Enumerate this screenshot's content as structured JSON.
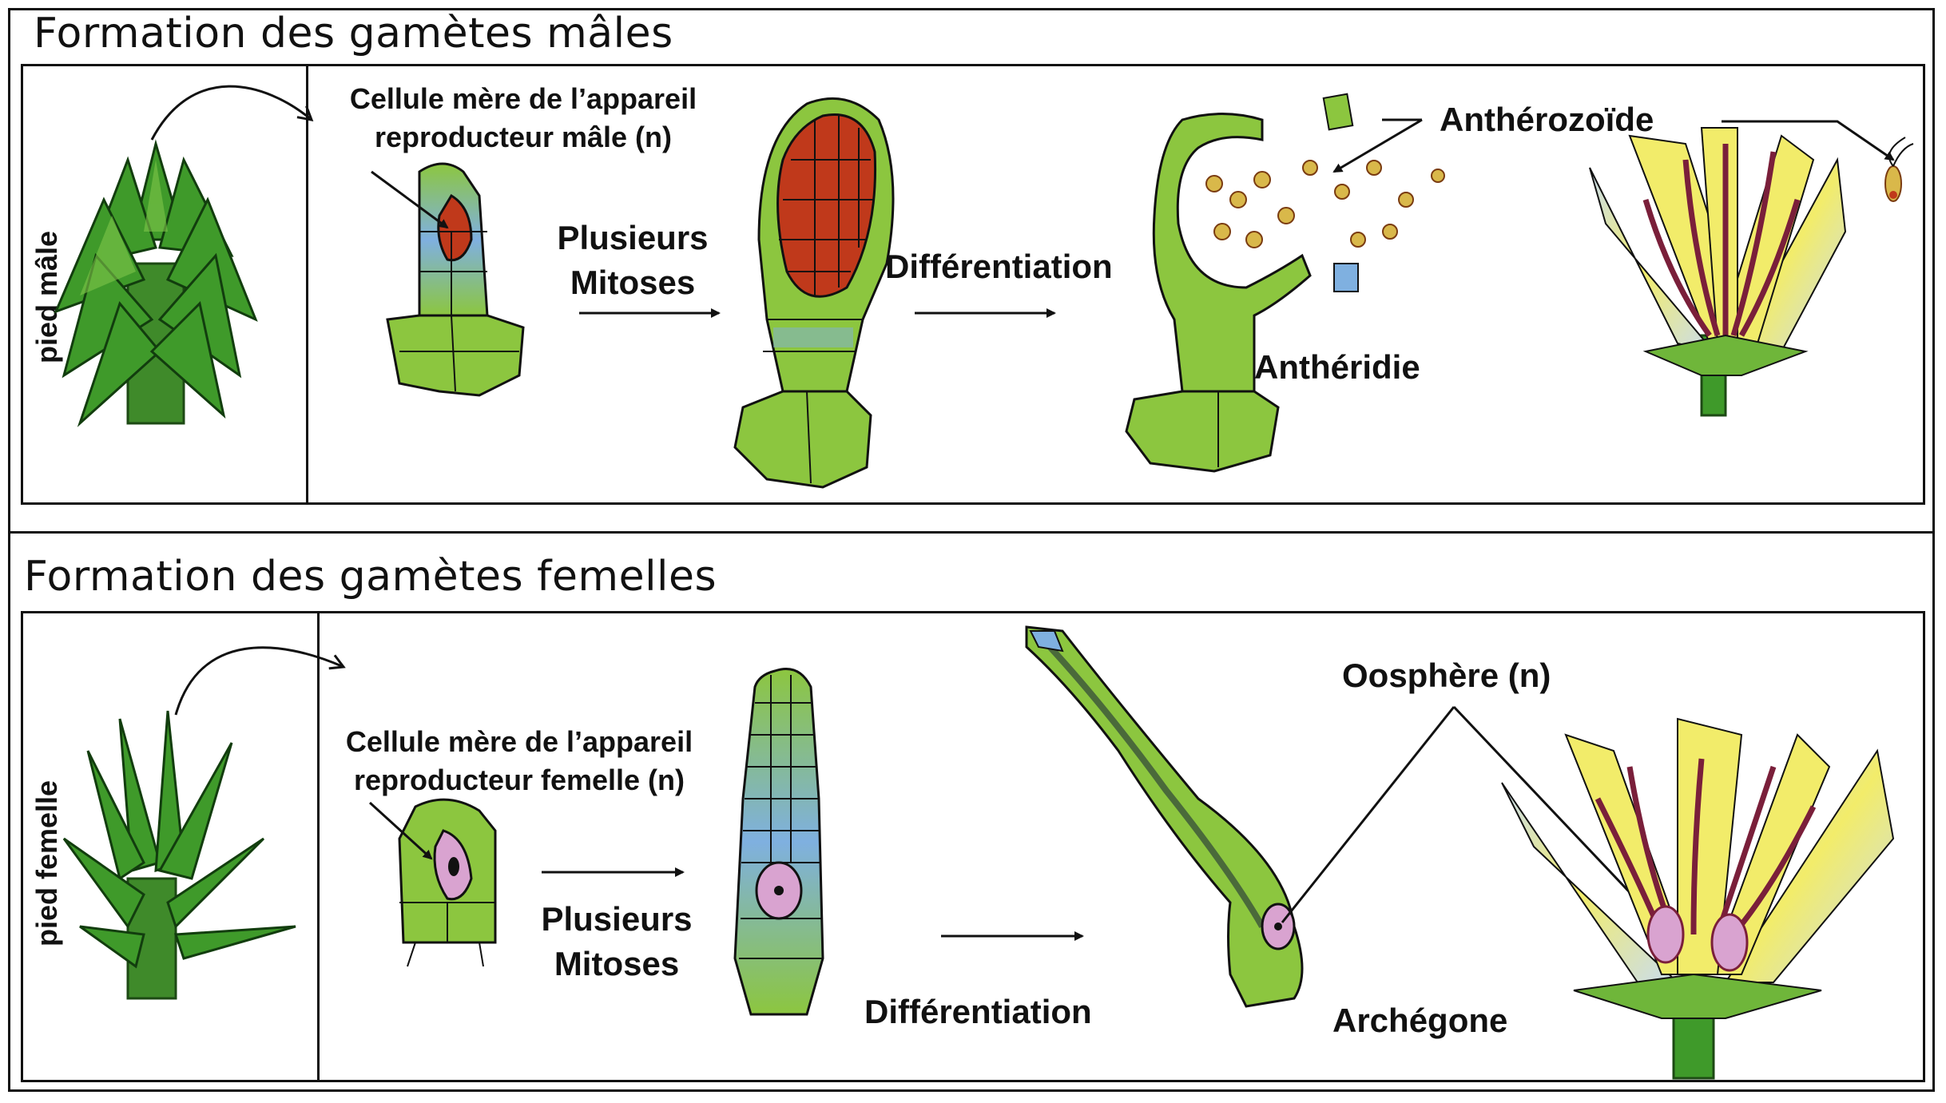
{
  "male": {
    "title": "Formation des gamètes mâles",
    "side_label": "pied mâle",
    "mother_cell": [
      "Cellule mère de l’appareil",
      "reproducteur mâle (n)"
    ],
    "mitoses": [
      "Plusieurs",
      "Mitoses"
    ],
    "differentiation": "Différentiation",
    "antheridie": "Anthéridie",
    "antherozoide": "Anthérozoïde"
  },
  "female": {
    "title": "Formation des gamètes femelles",
    "side_label": "pied femelle",
    "mother_cell": [
      "Cellule mère de l’appareil",
      "reproducteur femelle (n)"
    ],
    "mitoses": [
      "Plusieurs",
      "Mitoses"
    ],
    "differentiation": "Différentiation",
    "archegone": "Archégone",
    "oosphere": "Oosphère (n)"
  },
  "colors": {
    "border": "#111111",
    "leaf_dark": "#1f6b1a",
    "leaf_light": "#6fb63a",
    "cell_green": "#8cc63f",
    "cell_blue": "#7fb0e0",
    "nucleus_red": "#c0391b",
    "oosphere_pink": "#d9a3d0",
    "petal_yellow": "#f2ec6a",
    "petal_blue": "#c9dcf0",
    "stalk_purple": "#7a1f3a"
  }
}
